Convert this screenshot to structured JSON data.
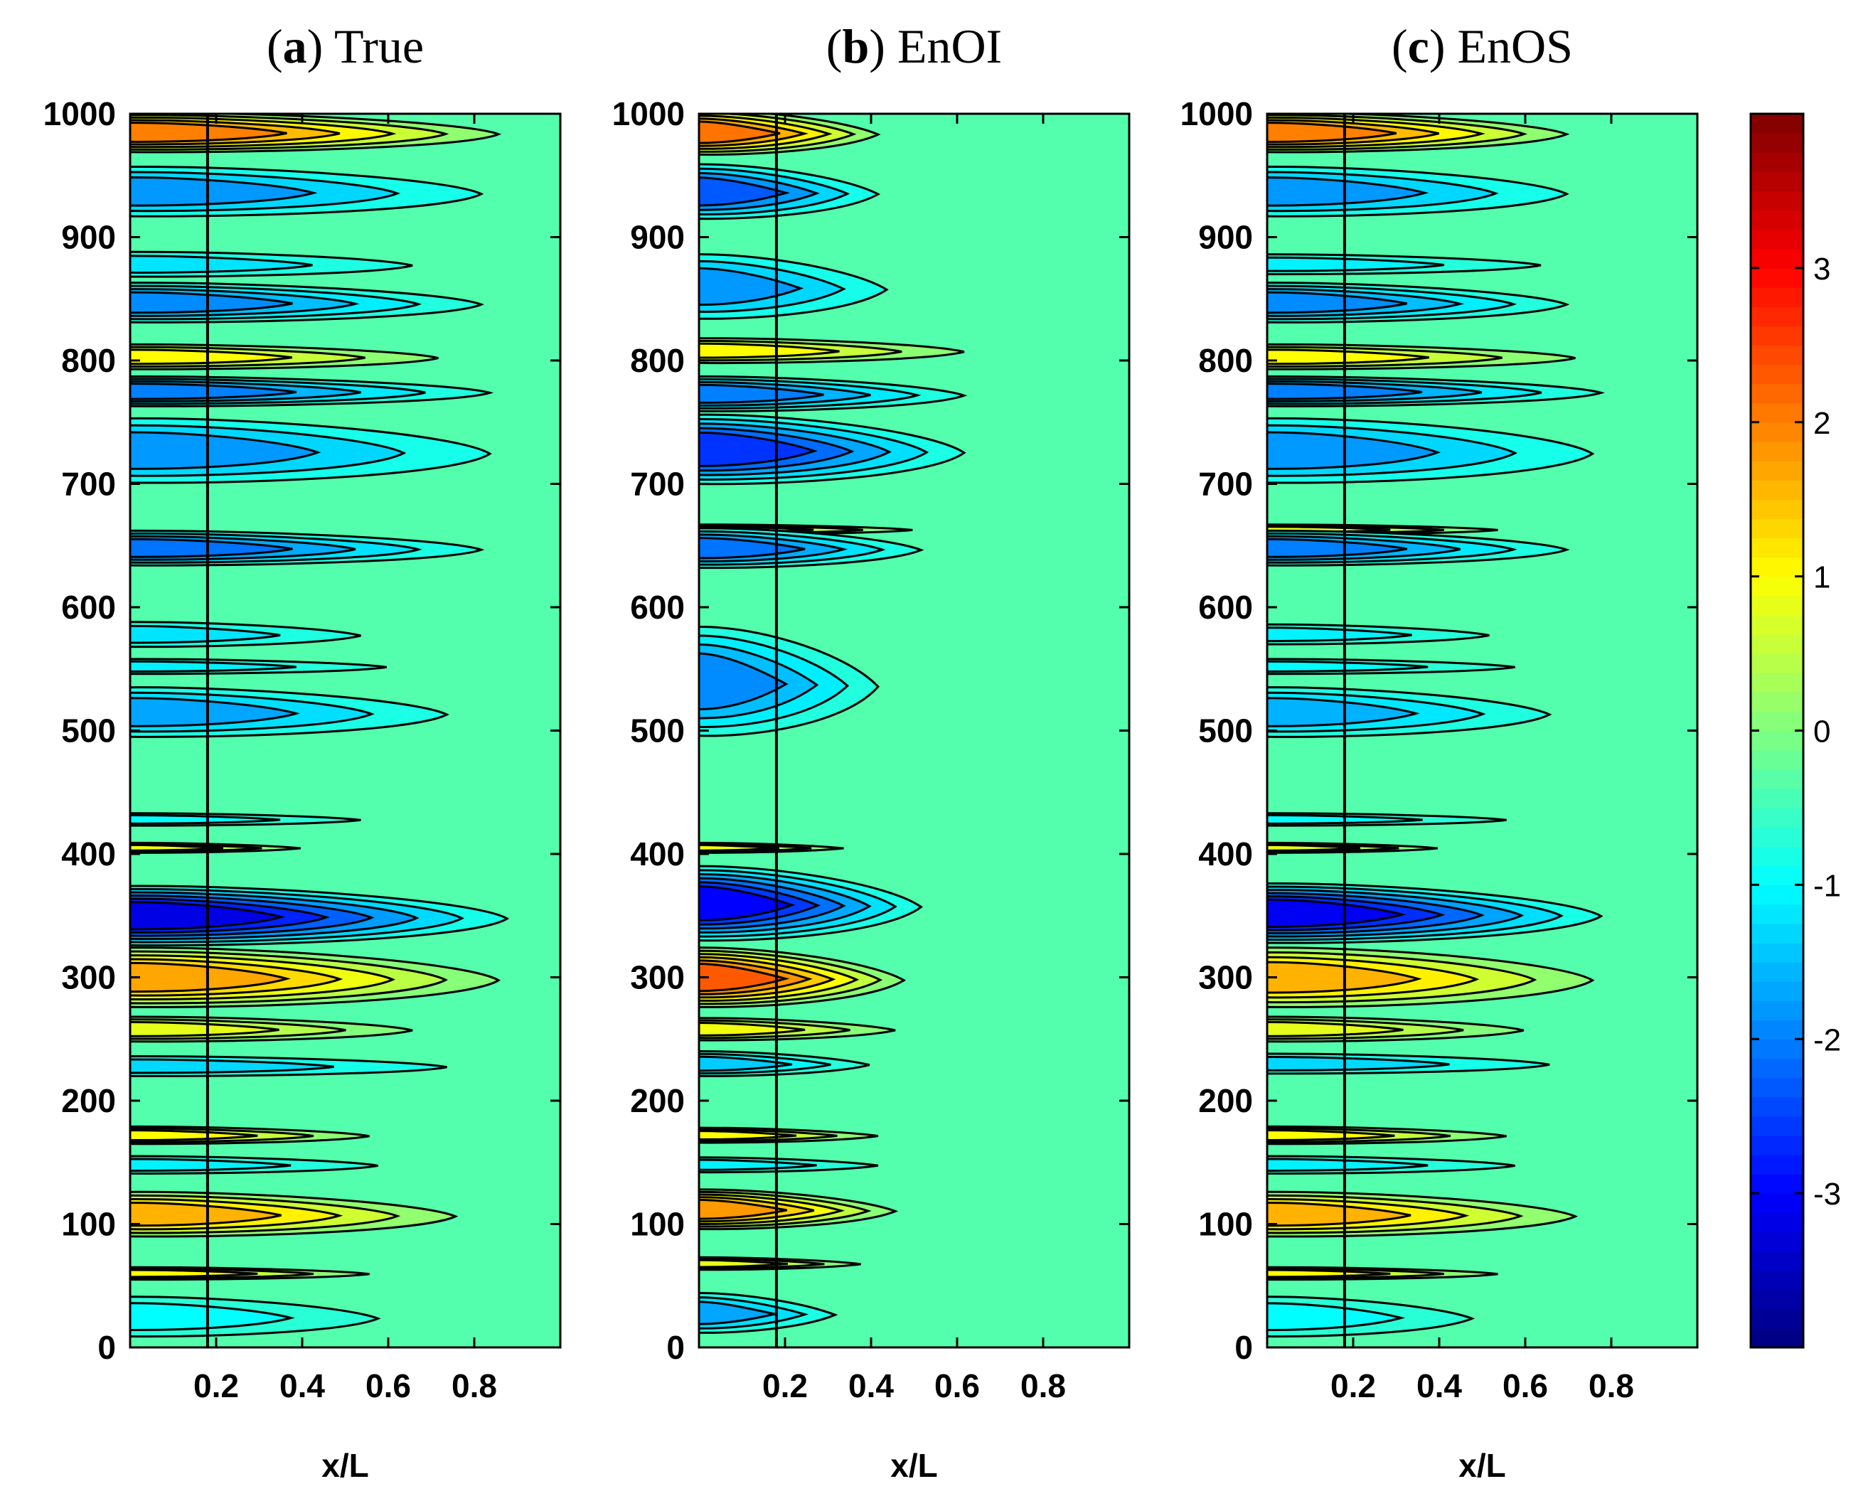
{
  "chart_data": {
    "type": "heatmap",
    "description_kind": "filled contour plots",
    "panels": [
      {
        "id": "a",
        "title_letter": "a",
        "title_name": "True",
        "xlabel": "x/L",
        "ylabel": "",
        "xlim": [
          0,
          1
        ],
        "ylim": [
          0,
          1000
        ],
        "x_ticks": [
          "0.2",
          "0.4",
          "0.6",
          "0.8"
        ],
        "y_ticks": [
          "0",
          "100",
          "200",
          "300",
          "400",
          "500",
          "600",
          "700",
          "800",
          "900",
          "1000"
        ],
        "vertical_line_x": 0.18,
        "features": [
          {
            "y": 985,
            "value": 2.0,
            "extent": 0.82,
            "thick": 16
          },
          {
            "y": 937,
            "value": -1.8,
            "extent": 0.78,
            "thick": 20
          },
          {
            "y": 878,
            "value": -1.2,
            "extent": 0.62,
            "thick": 10
          },
          {
            "y": 847,
            "value": -1.9,
            "extent": 0.78,
            "thick": 16
          },
          {
            "y": 803,
            "value": 1.0,
            "extent": 0.68,
            "thick": 10
          },
          {
            "y": 775,
            "value": -2.0,
            "extent": 0.8,
            "thick": 12
          },
          {
            "y": 727,
            "value": -1.8,
            "extent": 0.8,
            "thick": 26
          },
          {
            "y": 648,
            "value": -2.1,
            "extent": 0.78,
            "thick": 14
          },
          {
            "y": 578,
            "value": -1.2,
            "extent": 0.5,
            "thick": 10
          },
          {
            "y": 552,
            "value": -1.1,
            "extent": 0.56,
            "thick": 6
          },
          {
            "y": 515,
            "value": -1.7,
            "extent": 0.7,
            "thick": 20
          },
          {
            "y": 428,
            "value": -1.0,
            "extent": 0.5,
            "thick": 5
          },
          {
            "y": 405,
            "value": 0.9,
            "extent": 0.36,
            "thick": 4
          },
          {
            "y": 350,
            "value": -3.2,
            "extent": 0.84,
            "thick": 24
          },
          {
            "y": 300,
            "value": 1.7,
            "extent": 0.82,
            "thick": 24
          },
          {
            "y": 258,
            "value": 0.8,
            "extent": 0.62,
            "thick": 10
          },
          {
            "y": 228,
            "value": -1.3,
            "extent": 0.7,
            "thick": 8
          },
          {
            "y": 172,
            "value": 1.0,
            "extent": 0.52,
            "thick": 7
          },
          {
            "y": 148,
            "value": -1.1,
            "extent": 0.54,
            "thick": 7
          },
          {
            "y": 108,
            "value": 1.6,
            "extent": 0.72,
            "thick": 18
          },
          {
            "y": 60,
            "value": 1.0,
            "extent": 0.52,
            "thick": 5
          },
          {
            "y": 25,
            "value": -1.0,
            "extent": 0.54,
            "thick": 16
          }
        ]
      },
      {
        "id": "b",
        "title_letter": "b",
        "title_name": "EnOI",
        "xlabel": "x/L",
        "ylabel": "",
        "xlim": [
          0,
          1
        ],
        "ylim": [
          0,
          1000
        ],
        "x_ticks": [
          "0.2",
          "0.4",
          "0.6",
          "0.8"
        ],
        "y_ticks": [
          "0",
          "100",
          "200",
          "300",
          "400",
          "500",
          "600",
          "700",
          "800",
          "900",
          "1000"
        ],
        "vertical_line_x": 0.18,
        "features": [
          {
            "y": 985,
            "value": 2.1,
            "extent": 0.38,
            "thick": 18
          },
          {
            "y": 937,
            "value": -2.3,
            "extent": 0.38,
            "thick": 22
          },
          {
            "y": 860,
            "value": -1.8,
            "extent": 0.4,
            "thick": 26
          },
          {
            "y": 808,
            "value": 1.0,
            "extent": 0.58,
            "thick": 10
          },
          {
            "y": 773,
            "value": -2.0,
            "extent": 0.58,
            "thick": 14
          },
          {
            "y": 728,
            "value": -2.6,
            "extent": 0.58,
            "thick": 28
          },
          {
            "y": 663,
            "value": 0.8,
            "extent": 0.46,
            "thick": 4
          },
          {
            "y": 648,
            "value": -2.1,
            "extent": 0.48,
            "thick": 16
          },
          {
            "y": 540,
            "value": -1.9,
            "extent": 0.38,
            "thick": 44
          },
          {
            "y": 405,
            "value": 0.9,
            "extent": 0.3,
            "thick": 4
          },
          {
            "y": 360,
            "value": -3.0,
            "extent": 0.48,
            "thick": 30
          },
          {
            "y": 300,
            "value": 2.3,
            "extent": 0.44,
            "thick": 24
          },
          {
            "y": 258,
            "value": 0.9,
            "extent": 0.42,
            "thick": 9
          },
          {
            "y": 230,
            "value": -1.4,
            "extent": 0.36,
            "thick": 10
          },
          {
            "y": 172,
            "value": 1.0,
            "extent": 0.38,
            "thick": 6
          },
          {
            "y": 148,
            "value": -1.1,
            "extent": 0.38,
            "thick": 6
          },
          {
            "y": 112,
            "value": 1.8,
            "extent": 0.42,
            "thick": 16
          },
          {
            "y": 68,
            "value": 0.8,
            "extent": 0.34,
            "thick": 5
          },
          {
            "y": 28,
            "value": -1.7,
            "extent": 0.28,
            "thick": 16
          }
        ]
      },
      {
        "id": "c",
        "title_letter": "c",
        "title_name": "EnOS",
        "xlabel": "x/L",
        "ylabel": "",
        "xlim": [
          0,
          1
        ],
        "ylim": [
          0,
          1000
        ],
        "x_ticks": [
          "0.2",
          "0.4",
          "0.6",
          "0.8"
        ],
        "y_ticks": [
          "0",
          "100",
          "200",
          "300",
          "400",
          "500",
          "600",
          "700",
          "800",
          "900",
          "1000"
        ],
        "vertical_line_x": 0.18,
        "features": [
          {
            "y": 985,
            "value": 2.0,
            "extent": 0.66,
            "thick": 16
          },
          {
            "y": 937,
            "value": -1.8,
            "extent": 0.66,
            "thick": 20
          },
          {
            "y": 878,
            "value": -1.1,
            "extent": 0.6,
            "thick": 8
          },
          {
            "y": 847,
            "value": -1.9,
            "extent": 0.66,
            "thick": 16
          },
          {
            "y": 803,
            "value": 1.0,
            "extent": 0.68,
            "thick": 10
          },
          {
            "y": 775,
            "value": -2.0,
            "extent": 0.74,
            "thick": 12
          },
          {
            "y": 727,
            "value": -1.8,
            "extent": 0.72,
            "thick": 26
          },
          {
            "y": 663,
            "value": 0.8,
            "extent": 0.5,
            "thick": 4
          },
          {
            "y": 648,
            "value": -2.0,
            "extent": 0.66,
            "thick": 14
          },
          {
            "y": 578,
            "value": -1.1,
            "extent": 0.48,
            "thick": 8
          },
          {
            "y": 552,
            "value": -1.0,
            "extent": 0.54,
            "thick": 6
          },
          {
            "y": 515,
            "value": -1.6,
            "extent": 0.62,
            "thick": 20
          },
          {
            "y": 428,
            "value": -1.0,
            "extent": 0.52,
            "thick": 5
          },
          {
            "y": 405,
            "value": 0.8,
            "extent": 0.36,
            "thick": 4
          },
          {
            "y": 352,
            "value": -3.1,
            "extent": 0.74,
            "thick": 24
          },
          {
            "y": 300,
            "value": 1.6,
            "extent": 0.72,
            "thick": 24
          },
          {
            "y": 258,
            "value": 0.8,
            "extent": 0.56,
            "thick": 10
          },
          {
            "y": 230,
            "value": -1.3,
            "extent": 0.62,
            "thick": 8
          },
          {
            "y": 172,
            "value": 1.0,
            "extent": 0.52,
            "thick": 7
          },
          {
            "y": 148,
            "value": -1.1,
            "extent": 0.54,
            "thick": 7
          },
          {
            "y": 108,
            "value": 1.6,
            "extent": 0.68,
            "thick": 18
          },
          {
            "y": 60,
            "value": 1.0,
            "extent": 0.5,
            "thick": 5
          },
          {
            "y": 25,
            "value": -1.0,
            "extent": 0.44,
            "thick": 16
          }
        ]
      }
    ],
    "colorbar": {
      "min": -4,
      "max": 4,
      "levels": 64,
      "ticks": [
        "3",
        "2",
        "1",
        "0",
        "-1",
        "-2",
        "-3"
      ],
      "tick_values": [
        3,
        2,
        1,
        0,
        -1,
        -2,
        -3
      ],
      "colormap": "jet",
      "background_value": -0.35
    }
  }
}
